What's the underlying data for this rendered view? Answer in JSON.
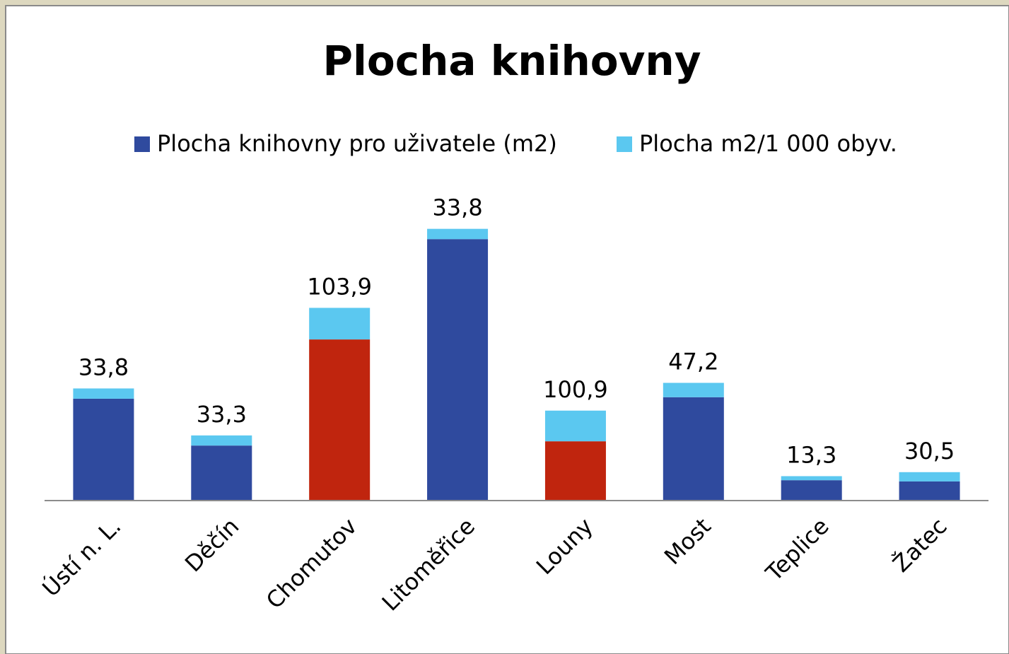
{
  "chart_data": {
    "type": "stacked_bar",
    "title": "Plocha knihovny",
    "categories": [
      "Ústí n. L.",
      "Děčín",
      "Chomutov",
      "Litoměřice",
      "Louny",
      "Most",
      "Teplice",
      "Žatec"
    ],
    "series": [
      {
        "name": "Plocha knihovny pro uživatele (m2)",
        "color": "#2f4a9e",
        "colors": [
          "#2f4a9e",
          "#2f4a9e",
          "#c0250e",
          "#2f4a9e",
          "#c0250e",
          "#2f4a9e",
          "#2f4a9e",
          "#2f4a9e"
        ],
        "values": [
          335,
          181,
          530,
          860,
          195,
          340,
          67,
          63
        ]
      },
      {
        "name": "Plocha m2/1 000 obyv.",
        "color": "#5bc8f0",
        "values": [
          33.8,
          33.3,
          103.9,
          33.8,
          100.9,
          47.2,
          13.3,
          30.5
        ],
        "value_labels": [
          "33,8",
          "33,3",
          "103,9",
          "33,8",
          "100,9",
          "47,2",
          "13,3",
          "30,5"
        ]
      }
    ],
    "ylim": [
      0,
      900
    ],
    "legend": "top"
  }
}
